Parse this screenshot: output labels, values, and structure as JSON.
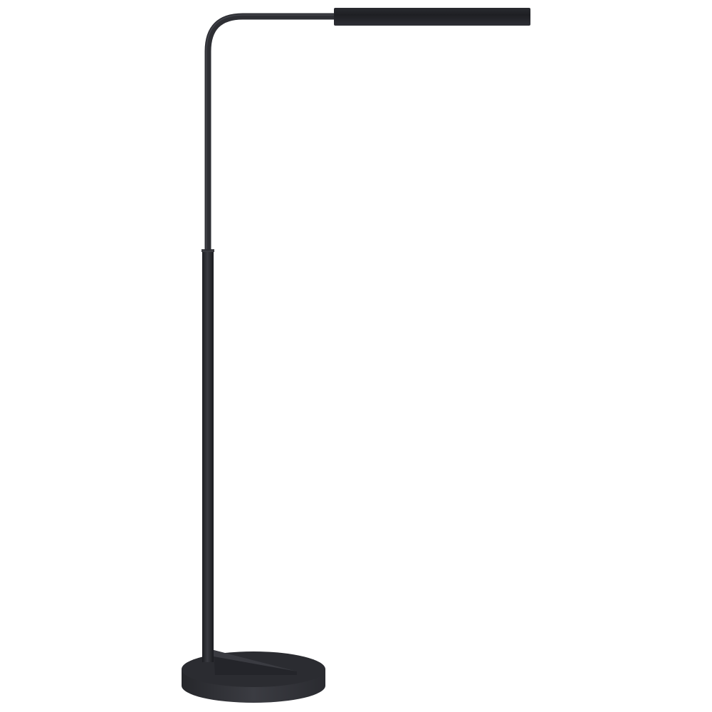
{
  "colors": {
    "background": "#ffffff",
    "lamp_dark": "#1f2024",
    "lamp_mid": "#2c2d32",
    "lamp_highlight": "#4a4b52"
  }
}
